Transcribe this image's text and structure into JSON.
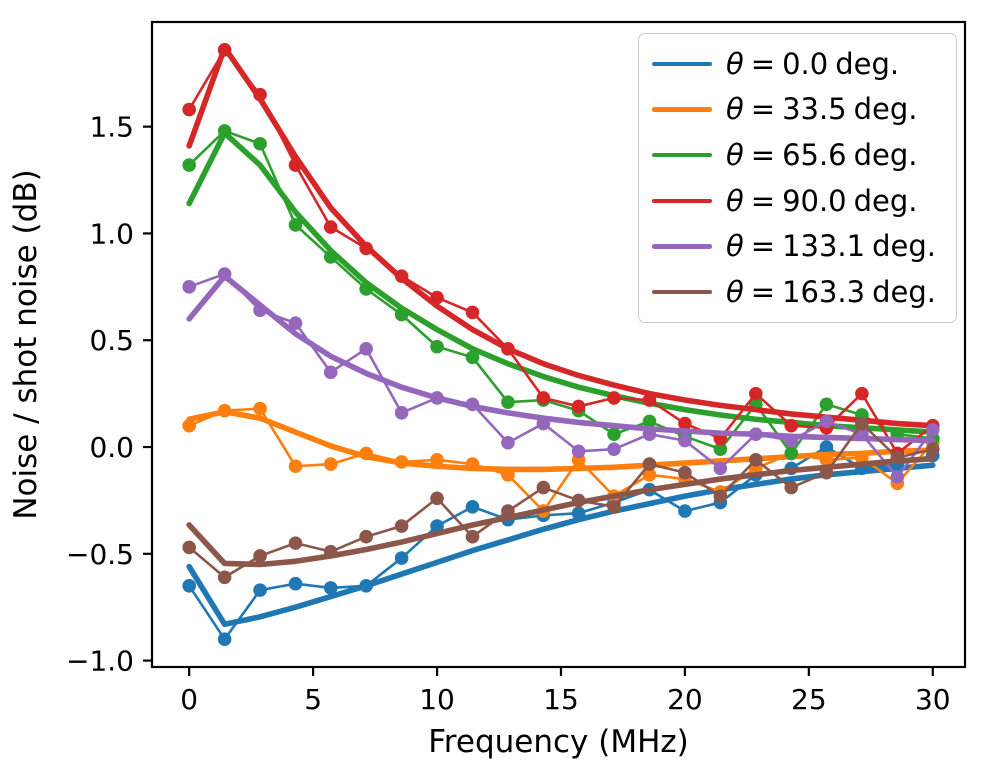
{
  "chart_data": {
    "type": "line",
    "marker": "circle",
    "title": "",
    "xlabel": "Frequency (MHz)",
    "ylabel": "Noise / shot noise (dB)",
    "xlim": [
      -1.5,
      31.3
    ],
    "ylim": [
      -1.03,
      1.99
    ],
    "grid": false,
    "legend_position": "upper right",
    "legend_theta": "θ",
    "legend_equals": "=",
    "x_ticks": [
      0,
      5,
      10,
      15,
      20,
      25,
      30
    ],
    "x_tick_labels": [
      "0",
      "5",
      "10",
      "15",
      "20",
      "25",
      "30"
    ],
    "y_ticks": [
      -1.0,
      -0.5,
      0.0,
      0.5,
      1.0,
      1.5
    ],
    "y_tick_labels": [
      "−1.0",
      "−0.5",
      "0.0",
      "0.5",
      "1.0",
      "1.5"
    ],
    "x": [
      0,
      1.43,
      2.86,
      4.29,
      5.71,
      7.14,
      8.57,
      10.0,
      11.43,
      12.86,
      14.29,
      15.71,
      17.14,
      18.57,
      20.0,
      21.43,
      22.86,
      24.29,
      25.71,
      27.14,
      28.57,
      30.0
    ],
    "series": [
      {
        "name": "theta-0.0-deg",
        "legend_value": "0.0",
        "legend_unit": "deg.",
        "color": "#1f77b4",
        "scatter": [
          -0.65,
          -0.9,
          -0.67,
          -0.64,
          -0.66,
          -0.65,
          -0.52,
          -0.37,
          -0.28,
          -0.34,
          -0.32,
          -0.31,
          -0.26,
          -0.2,
          -0.3,
          -0.26,
          -0.13,
          -0.1,
          0.0,
          -0.1,
          -0.08,
          -0.04
        ],
        "fit": [
          -0.56,
          -0.83,
          -0.795,
          -0.75,
          -0.7,
          -0.65,
          -0.595,
          -0.54,
          -0.485,
          -0.435,
          -0.385,
          -0.34,
          -0.3,
          -0.265,
          -0.23,
          -0.2,
          -0.175,
          -0.15,
          -0.13,
          -0.115,
          -0.1,
          -0.085
        ]
      },
      {
        "name": "theta-33.5-deg",
        "legend_value": "33.5",
        "legend_unit": "deg.",
        "color": "#ff7f0e",
        "scatter": [
          0.1,
          0.17,
          0.18,
          -0.09,
          -0.08,
          -0.03,
          -0.07,
          -0.06,
          -0.08,
          -0.13,
          -0.3,
          -0.06,
          -0.23,
          -0.13,
          -0.15,
          -0.21,
          -0.1,
          -0.03,
          -0.06,
          -0.05,
          -0.17,
          0.02
        ],
        "fit": [
          0.13,
          0.165,
          0.135,
          0.07,
          0.005,
          -0.045,
          -0.075,
          -0.09,
          -0.1,
          -0.105,
          -0.105,
          -0.1,
          -0.095,
          -0.085,
          -0.075,
          -0.065,
          -0.055,
          -0.045,
          -0.035,
          -0.03,
          -0.02,
          -0.015
        ]
      },
      {
        "name": "theta-65.6-deg",
        "legend_value": "65.6",
        "legend_unit": "deg.",
        "color": "#2ca02c",
        "scatter": [
          1.32,
          1.48,
          1.42,
          1.04,
          0.89,
          0.74,
          0.62,
          0.47,
          0.42,
          0.21,
          0.22,
          0.17,
          0.06,
          0.12,
          0.05,
          -0.01,
          0.2,
          -0.03,
          0.2,
          0.15,
          0.06,
          0.04
        ],
        "fit": [
          1.14,
          1.47,
          1.32,
          1.1,
          0.92,
          0.77,
          0.65,
          0.55,
          0.46,
          0.39,
          0.33,
          0.28,
          0.24,
          0.205,
          0.175,
          0.15,
          0.13,
          0.115,
          0.1,
          0.09,
          0.08,
          0.07
        ]
      },
      {
        "name": "theta-90.0-deg",
        "legend_value": "90.0",
        "legend_unit": "deg.",
        "color": "#d62728",
        "scatter": [
          1.58,
          1.86,
          1.65,
          1.32,
          1.03,
          0.93,
          0.8,
          0.7,
          0.63,
          0.46,
          0.23,
          0.19,
          0.23,
          0.22,
          0.11,
          0.04,
          0.25,
          0.1,
          0.09,
          0.25,
          -0.03,
          0.1
        ],
        "fit": [
          1.41,
          1.87,
          1.63,
          1.36,
          1.12,
          0.94,
          0.79,
          0.66,
          0.55,
          0.46,
          0.39,
          0.335,
          0.29,
          0.25,
          0.22,
          0.195,
          0.175,
          0.155,
          0.14,
          0.125,
          0.11,
          0.1
        ]
      },
      {
        "name": "theta-133.1-deg",
        "legend_value": "133.1",
        "legend_unit": "deg.",
        "color": "#9467bd",
        "scatter": [
          0.75,
          0.81,
          0.64,
          0.58,
          0.35,
          0.46,
          0.16,
          0.23,
          0.2,
          0.02,
          0.11,
          -0.02,
          -0.01,
          0.06,
          0.03,
          -0.1,
          0.06,
          0.03,
          0.12,
          0.06,
          -0.14,
          0.08
        ],
        "fit": [
          0.6,
          0.8,
          0.665,
          0.53,
          0.425,
          0.345,
          0.28,
          0.23,
          0.19,
          0.16,
          0.135,
          0.115,
          0.1,
          0.085,
          0.075,
          0.065,
          0.06,
          0.05,
          0.045,
          0.04,
          0.035,
          0.03
        ]
      },
      {
        "name": "theta-163.3-deg",
        "legend_value": "163.3",
        "legend_unit": "deg.",
        "color": "#8c564b",
        "scatter": [
          -0.47,
          -0.61,
          -0.51,
          -0.45,
          -0.49,
          -0.42,
          -0.37,
          -0.24,
          -0.42,
          -0.3,
          -0.19,
          -0.25,
          -0.28,
          -0.08,
          -0.12,
          -0.23,
          -0.06,
          -0.19,
          -0.12,
          0.11,
          -0.05,
          -0.01
        ],
        "fit": [
          -0.365,
          -0.545,
          -0.55,
          -0.535,
          -0.51,
          -0.48,
          -0.445,
          -0.405,
          -0.365,
          -0.33,
          -0.295,
          -0.26,
          -0.23,
          -0.2,
          -0.175,
          -0.15,
          -0.13,
          -0.11,
          -0.095,
          -0.08,
          -0.065,
          -0.055
        ]
      }
    ]
  }
}
